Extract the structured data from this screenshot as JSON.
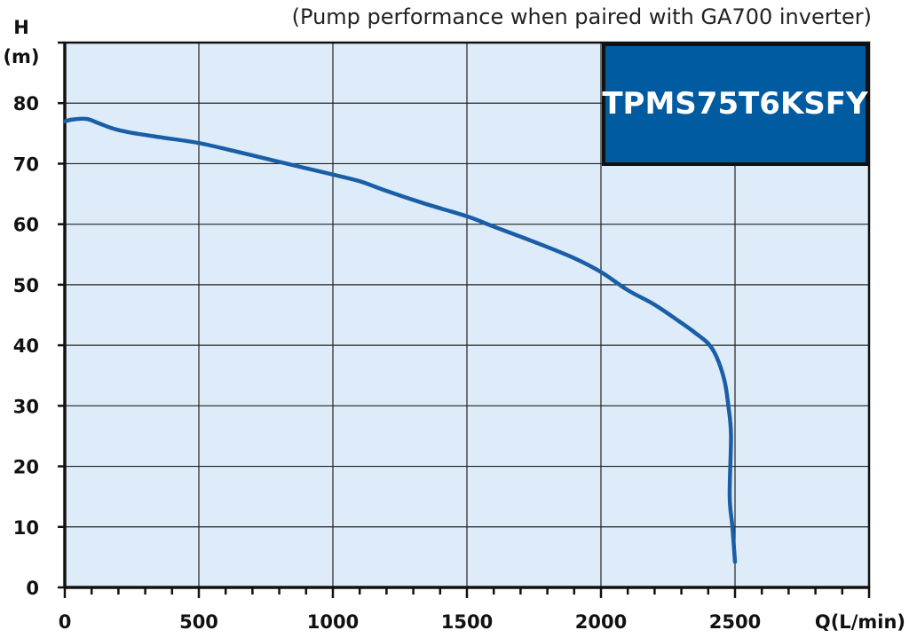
{
  "chart_data": {
    "type": "line",
    "subtitle": "(Pump performance when paired with GA700 inverter)",
    "ylabel_line1": "H",
    "ylabel_line2": "(m)",
    "xlabel": "Q(L/min)",
    "xlim": [
      0,
      3000
    ],
    "ylim": [
      0,
      90
    ],
    "x_ticks": [
      0,
      500,
      1000,
      1500,
      2000,
      2500
    ],
    "x_tick_labels": [
      "0",
      "500",
      "1000",
      "1500",
      "2000",
      "2500"
    ],
    "y_ticks": [
      0,
      10,
      20,
      30,
      40,
      50,
      60,
      70,
      80
    ],
    "y_tick_labels": [
      "0",
      "10",
      "20",
      "30",
      "40",
      "50",
      "60",
      "70",
      "80"
    ],
    "grid": true,
    "model_label": "TPMS75T6KSFY",
    "series": [
      {
        "color": "#1a5ea8",
        "x": [
          0,
          30,
          80,
          120,
          180,
          250,
          350,
          500,
          650,
          800,
          1000,
          1100,
          1200,
          1350,
          1500,
          1600,
          1750,
          1900,
          2000,
          2100,
          2200,
          2300,
          2350,
          2400,
          2430,
          2460,
          2475,
          2485,
          2480,
          2490,
          2500
        ],
        "y": [
          77,
          77.3,
          77.4,
          76.8,
          75.8,
          75.1,
          74.4,
          73.4,
          71.9,
          70.3,
          68.2,
          67.1,
          65.5,
          63.3,
          61.3,
          59.6,
          57.1,
          54.4,
          52.1,
          49.1,
          46.7,
          43.7,
          42.1,
          40.3,
          38.2,
          34.3,
          30.1,
          25.1,
          15.1,
          10.1,
          4.2
        ]
      }
    ]
  }
}
